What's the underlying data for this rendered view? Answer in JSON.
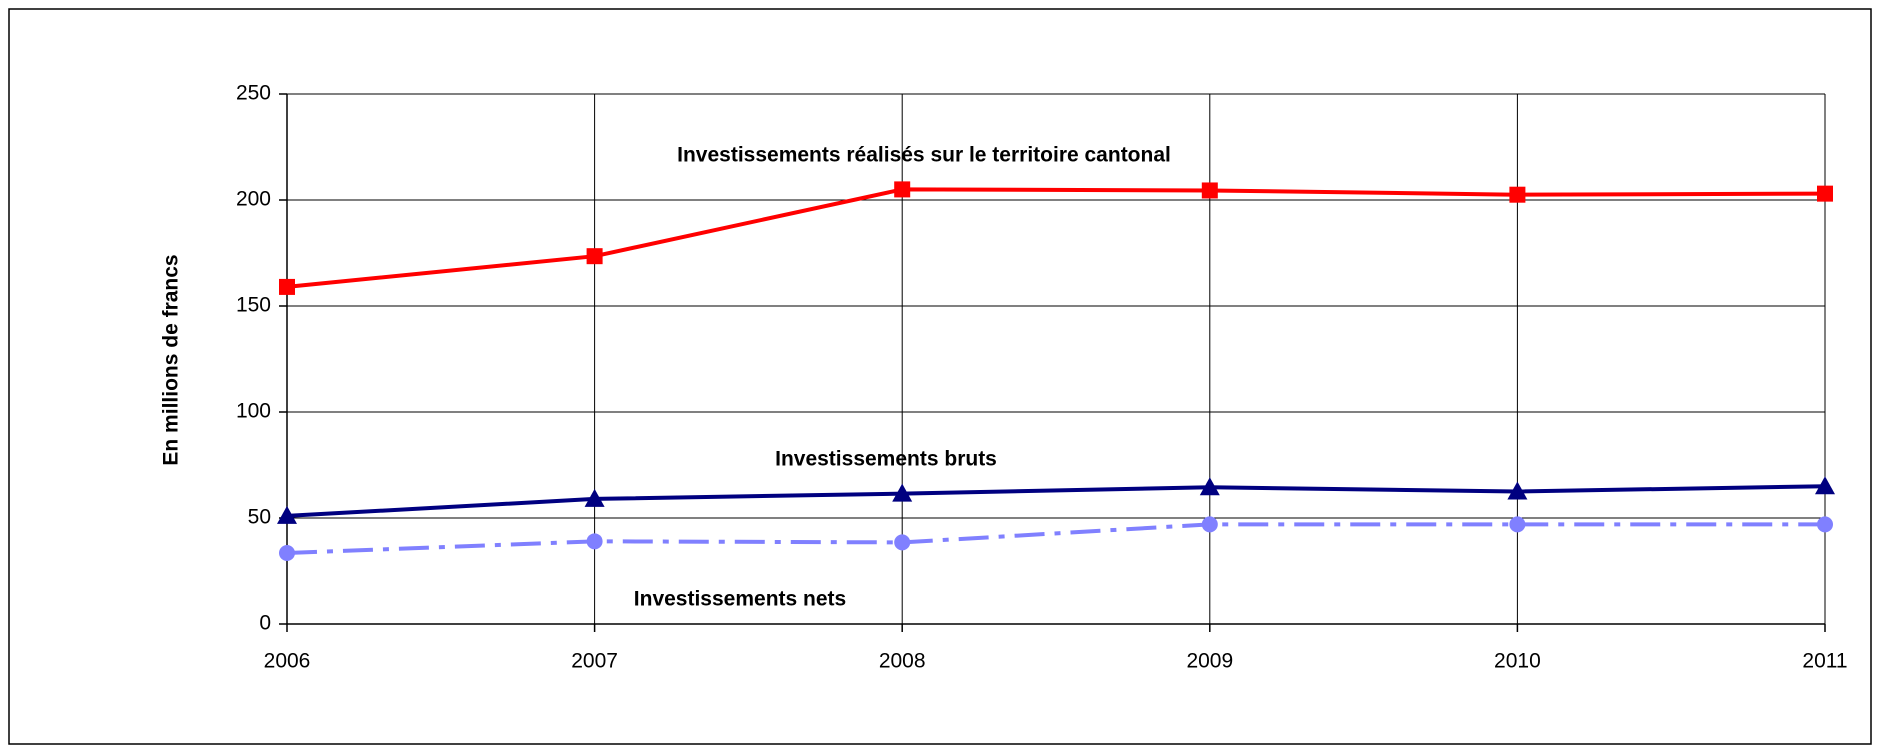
{
  "chart_data": {
    "type": "line",
    "y_label": "En millions de francs",
    "categories": [
      "2006",
      "2007",
      "2008",
      "2009",
      "2010",
      "2011"
    ],
    "series": [
      {
        "name": "Investissements réalisés sur le territoire cantonal",
        "color": "#ff0000",
        "marker": "square",
        "line_style": "solid",
        "values": [
          159,
          173.5,
          205,
          204.5,
          202.5,
          203
        ]
      },
      {
        "name": "Investissements bruts",
        "color": "#000080",
        "marker": "triangle",
        "line_style": "solid",
        "values": [
          51,
          59,
          61.5,
          64.5,
          62.5,
          65
        ]
      },
      {
        "name": "Investissements nets",
        "color": "#8080ff",
        "marker": "circle",
        "line_style": "dashdot",
        "values": [
          33.5,
          39,
          38.5,
          47,
          47,
          47
        ]
      }
    ],
    "ylim": [
      0,
      250
    ],
    "yticks": [
      0,
      50,
      100,
      150,
      200,
      250
    ],
    "grid": true
  }
}
